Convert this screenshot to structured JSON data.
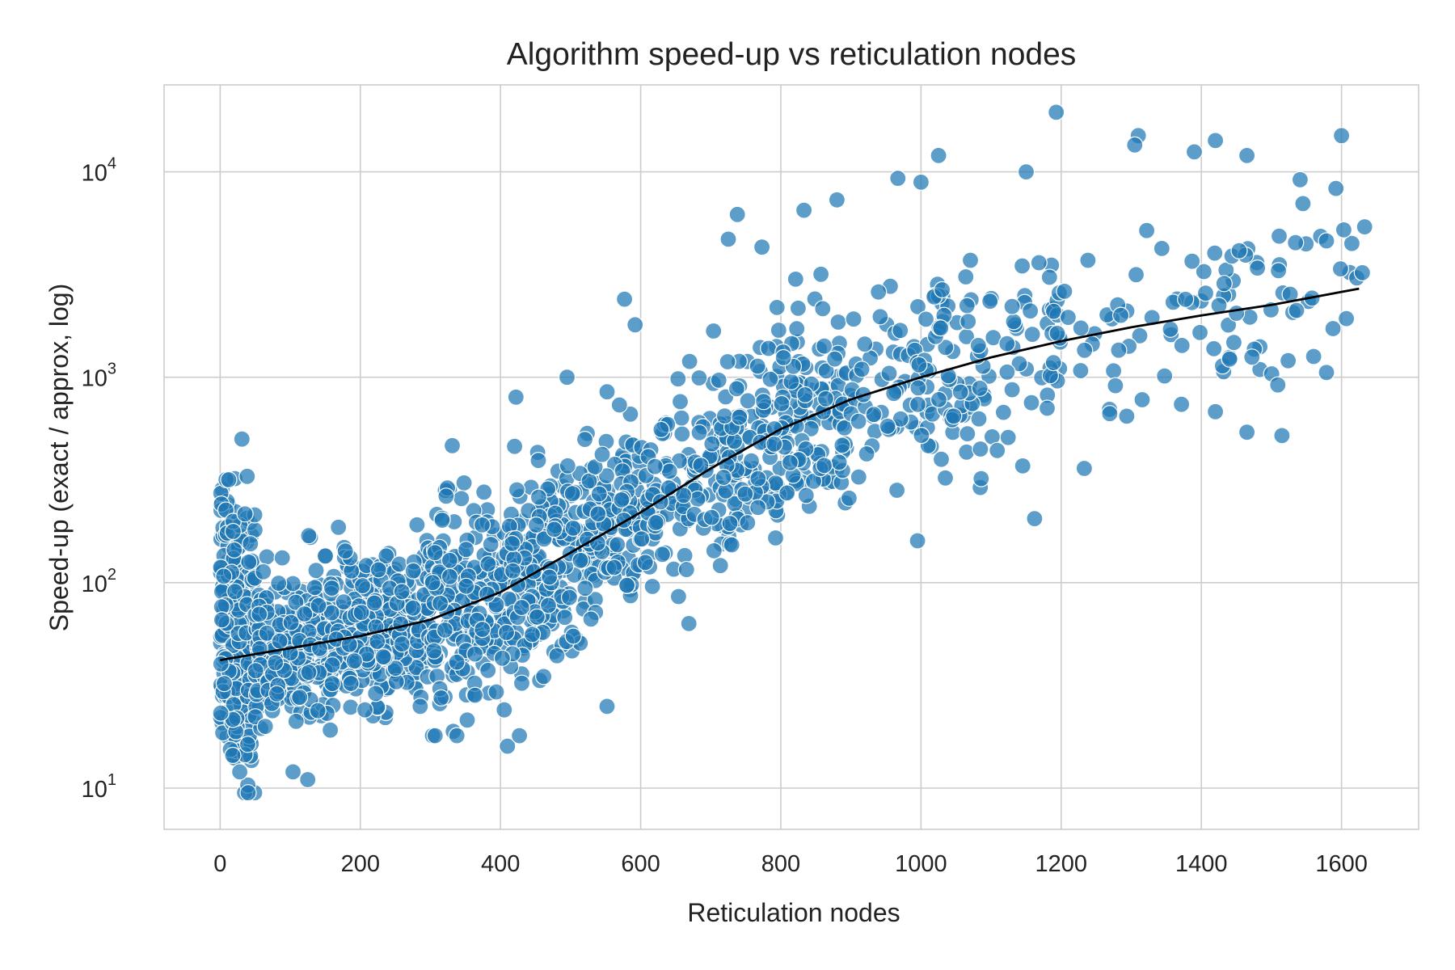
{
  "chart_data": {
    "type": "scatter",
    "title": "Algorithm speed-up vs reticulation nodes",
    "xlabel": "Reticulation nodes",
    "ylabel": "Speed-up  (exact / approx, log)",
    "xlim": [
      -80,
      1710
    ],
    "ylim": [
      6.3,
      26500
    ],
    "y_scale": "log",
    "x_ticks": [
      0,
      200,
      400,
      600,
      800,
      1000,
      1200,
      1400,
      1600
    ],
    "y_ticks": [
      {
        "value": 10,
        "base": "10",
        "exp": "1"
      },
      {
        "value": 100,
        "base": "10",
        "exp": "2"
      },
      {
        "value": 1000,
        "base": "10",
        "exp": "3"
      },
      {
        "value": 10000,
        "base": "10",
        "exp": "4"
      }
    ],
    "grid": true,
    "colors": {
      "points": "#1f77b4",
      "trend": "#000000",
      "grid": "#cccccc"
    },
    "trend": {
      "x": [
        0,
        100,
        200,
        300,
        400,
        500,
        600,
        700,
        800,
        900,
        1000,
        1100,
        1200,
        1300,
        1400,
        1500,
        1625
      ],
      "y": [
        42,
        48,
        55,
        66,
        90,
        140,
        220,
        360,
        560,
        780,
        1000,
        1250,
        1500,
        1750,
        2000,
        2250,
        2700
      ]
    },
    "point_groups": [
      {
        "x_range": [
          0,
          50
        ],
        "count": 280,
        "y_low": 9.5,
        "y_high": 500
      },
      {
        "x_range": [
          50,
          300
        ],
        "count": 560,
        "y_low": 11,
        "y_high": 300
      },
      {
        "x_range": [
          300,
          600
        ],
        "count": 520,
        "y_low": 18,
        "y_high": 1000
      },
      {
        "x_range": [
          600,
          900
        ],
        "count": 340,
        "y_low": 38,
        "y_high": 7000
      },
      {
        "x_range": [
          900,
          1200
        ],
        "count": 170,
        "y_low": 160,
        "y_high": 19500
      },
      {
        "x_range": [
          1200,
          1630
        ],
        "count": 90,
        "y_low": 350,
        "y_high": 15000
      }
    ],
    "points": [
      [
        1193,
        19500
      ],
      [
        1025,
        12000
      ],
      [
        1310,
        15000
      ],
      [
        1420,
        14200
      ],
      [
        1600,
        15000
      ],
      [
        1465,
        12000
      ],
      [
        1390,
        12500
      ],
      [
        1305,
        13500
      ],
      [
        1150,
        10000
      ],
      [
        1592,
        8300
      ],
      [
        1545,
        7000
      ],
      [
        1633,
        5400
      ],
      [
        1510,
        3300
      ],
      [
        1480,
        3400
      ],
      [
        1515,
        520
      ],
      [
        1465,
        540
      ],
      [
        1420,
        680
      ],
      [
        1398,
        1650
      ],
      [
        1450,
        2050
      ],
      [
        1233,
        360
      ],
      [
        1162,
        205
      ],
      [
        995,
        160
      ],
      [
        552,
        25
      ],
      [
        422,
        800
      ],
      [
        495,
        1000
      ],
      [
        577,
        2400
      ],
      [
        592,
        1800
      ],
      [
        738,
        6200
      ],
      [
        725,
        4700
      ],
      [
        773,
        4300
      ],
      [
        833,
        6500
      ],
      [
        880,
        7300
      ],
      [
        967,
        9300
      ],
      [
        1000,
        8900
      ],
      [
        40,
        9.5
      ],
      [
        28,
        12
      ],
      [
        104,
        12
      ],
      [
        125,
        11
      ],
      [
        410,
        16
      ],
      [
        427,
        18
      ]
    ]
  }
}
